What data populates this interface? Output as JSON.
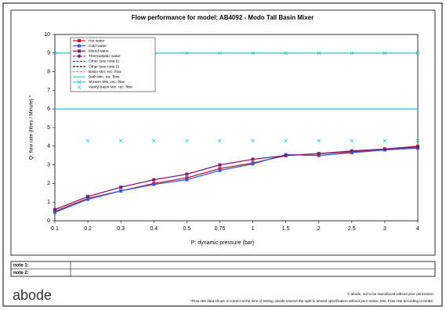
{
  "chart_data": {
    "type": "line",
    "title": "Flow performance for model: AB4092 - Modo Tall Basin Mixer",
    "x_label": "P: dynamic pressure (bar)",
    "y_label": "Q: flow rate (litres / Minute) *",
    "categories": [
      "0.1",
      "0.2",
      "0.3",
      "0.4",
      "0.5",
      "0.75",
      "1",
      "1.5",
      "2",
      "2.5",
      "3",
      "4"
    ],
    "ylim": [
      0,
      10
    ],
    "yticks": [
      0,
      1,
      2,
      3,
      4,
      5,
      6,
      7,
      8,
      9,
      10
    ],
    "series": [
      {
        "name": "Hot water",
        "color": "#c0143c",
        "line": "solid",
        "marker": "square",
        "values": [
          0.5,
          1.2,
          1.6,
          2.0,
          2.3,
          2.8,
          3.1,
          3.5,
          3.6,
          3.7,
          3.85,
          4.0
        ]
      },
      {
        "name": "Cold water",
        "color": "#3a5fcd",
        "line": "solid",
        "marker": "square",
        "values": [
          0.45,
          1.15,
          1.6,
          1.95,
          2.2,
          2.7,
          3.05,
          3.55,
          3.5,
          3.65,
          3.8,
          3.9
        ]
      },
      {
        "name": "Mixed water",
        "color": "#7b1f6e",
        "line": "solid",
        "marker": "square",
        "values": [
          0.6,
          1.3,
          1.8,
          2.2,
          2.5,
          3.0,
          3.3,
          3.5,
          3.6,
          3.75,
          3.85,
          3.95
        ]
      },
      {
        "name": "Thermostatic water",
        "color": "#7b1f6e",
        "line": "dashed",
        "marker": "circle",
        "values": [
          null,
          null,
          null,
          null,
          null,
          null,
          null,
          null,
          null,
          null,
          null,
          null
        ]
      },
      {
        "name": "Other (see note 1)",
        "color": "#c0143c",
        "line": "dashed",
        "marker": "none",
        "values": [
          null,
          null,
          null,
          null,
          null,
          null,
          null,
          null,
          null,
          null,
          null,
          null
        ]
      },
      {
        "name": "Other (see note 2)",
        "color": "#000000",
        "line": "dashed",
        "marker": "none",
        "values": [
          null,
          null,
          null,
          null,
          null,
          null,
          null,
          null,
          null,
          null,
          null,
          null
        ]
      },
      {
        "name": "Basin Min. rec. flow",
        "color": "#33cccc",
        "line": "dashed",
        "marker": "none",
        "values": [
          null,
          null,
          null,
          null,
          null,
          null,
          null,
          null,
          null,
          null,
          null,
          null
        ]
      },
      {
        "name": "Bath Min. rec. flow",
        "color": "#33cccc",
        "line": "solid",
        "marker": "none",
        "values": [
          6,
          6,
          6,
          6,
          6,
          6,
          6,
          6,
          6,
          6,
          6,
          6
        ]
      },
      {
        "name": "Shower Min. rec. flow",
        "color": "#33cccc",
        "line": "solid",
        "marker": "cross",
        "values": [
          9,
          9,
          9,
          9,
          9,
          9,
          9,
          9,
          9,
          9,
          9,
          9
        ]
      },
      {
        "name": "Vanity Basin Min. rec. flow",
        "color": "#33cccc",
        "line": "none",
        "marker": "cross",
        "values": [
          null,
          4.3,
          4.3,
          4.3,
          4.3,
          4.3,
          4.3,
          4.3,
          4.3,
          4.3,
          4.3,
          4.3
        ]
      }
    ]
  },
  "notes": [
    "note 1:",
    "note 2:"
  ],
  "logo": "abode",
  "footer": [
    "© abode, not to be reproduced without prior permission",
    "*Flow rate data shown is correct at the time of testing. abode reserve the right to amend specification without prior notice. Min. Flow rate according to NHBC"
  ]
}
